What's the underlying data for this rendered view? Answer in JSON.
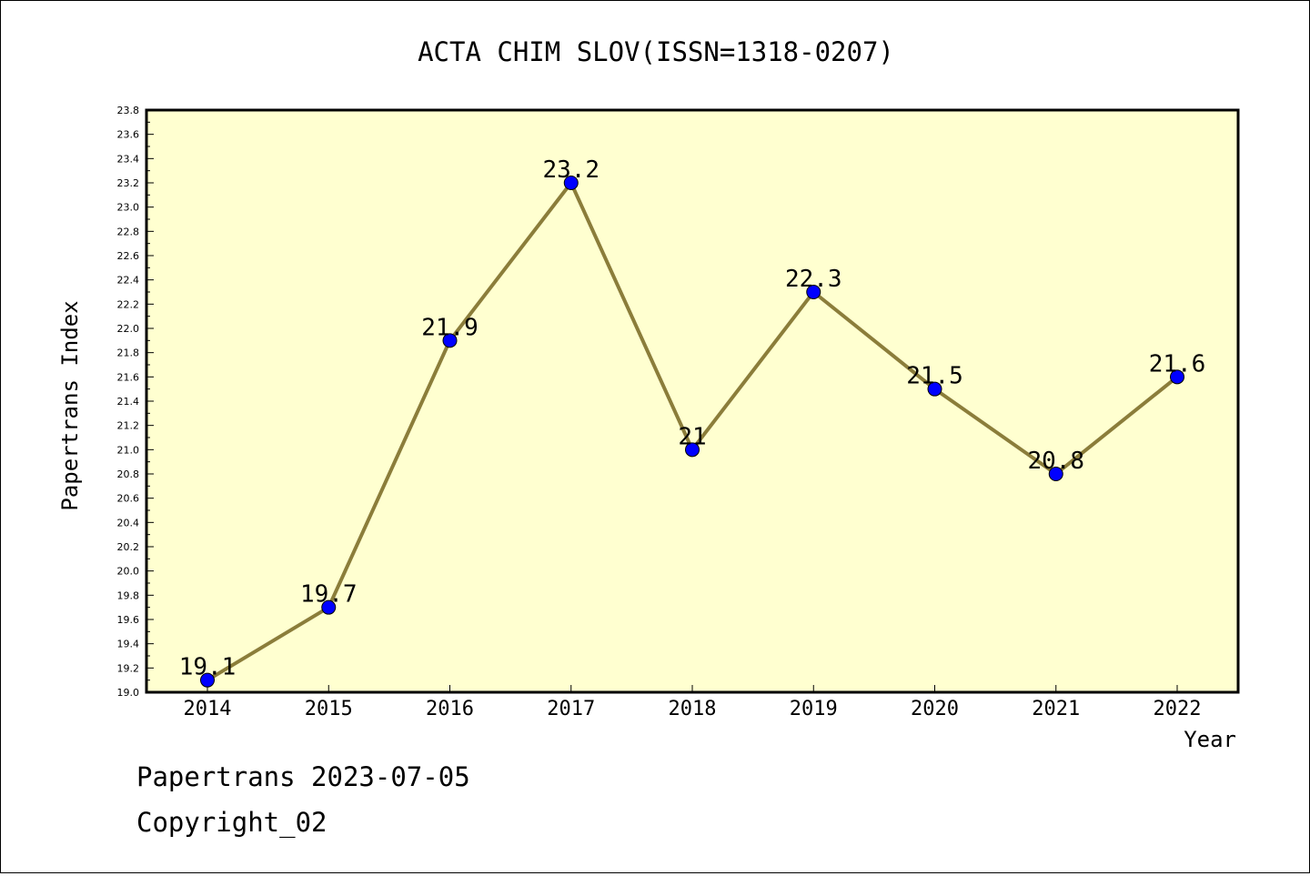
{
  "chart_data": {
    "type": "line",
    "title": "ACTA CHIM SLOV(ISSN=1318-0207)",
    "xlabel": "Year",
    "ylabel": "Papertrans Index",
    "categories": [
      "2014",
      "2015",
      "2016",
      "2017",
      "2018",
      "2019",
      "2020",
      "2021",
      "2022"
    ],
    "values": [
      19.1,
      19.7,
      21.9,
      23.2,
      21.0,
      22.3,
      21.5,
      20.8,
      21.6
    ],
    "data_labels": [
      "19.1",
      "19.7",
      "21.9",
      "23.2",
      "21",
      "22.3",
      "21.5",
      "20.8",
      "21.6"
    ],
    "ylim": [
      19.0,
      23.8
    ],
    "y_ticks": [
      "19.0",
      "19.2",
      "19.4",
      "19.6",
      "19.8",
      "20.0",
      "20.2",
      "20.4",
      "20.6",
      "20.8",
      "21.0",
      "21.2",
      "21.4",
      "21.6",
      "21.8",
      "22.0",
      "22.2",
      "22.4",
      "22.6",
      "22.8",
      "23.0",
      "23.2",
      "23.4",
      "23.6",
      "23.8"
    ],
    "grid": false,
    "colors": {
      "plot_background": "#ffffd0",
      "line": "#8b7d3a",
      "marker": "#0000ff"
    }
  },
  "footer": {
    "line1": "Papertrans 2023-07-05",
    "line2": "Copyright_02"
  }
}
